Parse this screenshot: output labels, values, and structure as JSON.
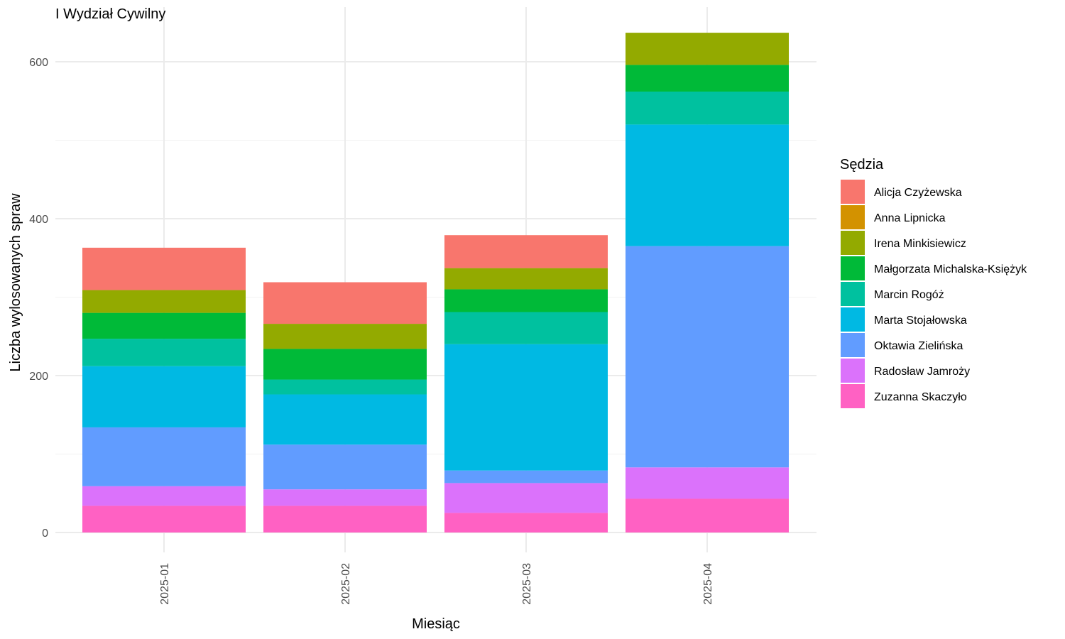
{
  "chart_data": {
    "type": "bar",
    "stacked": true,
    "title": "I Wydział Cywilny",
    "xlabel": "Miesiąc",
    "ylabel": "Liczba wylosowanych spraw",
    "categories": [
      "2025-01",
      "2025-02",
      "2025-03",
      "2025-04"
    ],
    "ylim": [
      0,
      650
    ],
    "yticks": [
      0,
      200,
      400,
      600
    ],
    "grid": true,
    "legend": {
      "title": "Sędzia",
      "position": "right"
    },
    "series": [
      {
        "name": "Alicja Czyżewska",
        "color": "#F8766D",
        "values": [
          54,
          53,
          42,
          0
        ]
      },
      {
        "name": "Anna Lipnicka",
        "color": "#D39200",
        "values": [
          0,
          0,
          0,
          0
        ]
      },
      {
        "name": "Irena Minkisiewicz",
        "color": "#93AA00",
        "values": [
          29,
          32,
          27,
          41
        ]
      },
      {
        "name": "Małgorzata Michalska-Księżyk",
        "color": "#00BA38",
        "values": [
          33,
          39,
          29,
          34
        ]
      },
      {
        "name": "Marcin Rogóż",
        "color": "#00C19F",
        "values": [
          35,
          19,
          41,
          42
        ]
      },
      {
        "name": "Marta Stojałowska",
        "color": "#00B9E3",
        "values": [
          78,
          64,
          161,
          155
        ]
      },
      {
        "name": "Oktawia Zielińska",
        "color": "#619CFF",
        "values": [
          75,
          57,
          16,
          282
        ]
      },
      {
        "name": "Radosław Jamroży",
        "color": "#DB72FB",
        "values": [
          25,
          21,
          38,
          40
        ]
      },
      {
        "name": "Zuzanna Skaczyło",
        "color": "#FF61C3",
        "values": [
          34,
          34,
          25,
          43
        ]
      }
    ]
  }
}
